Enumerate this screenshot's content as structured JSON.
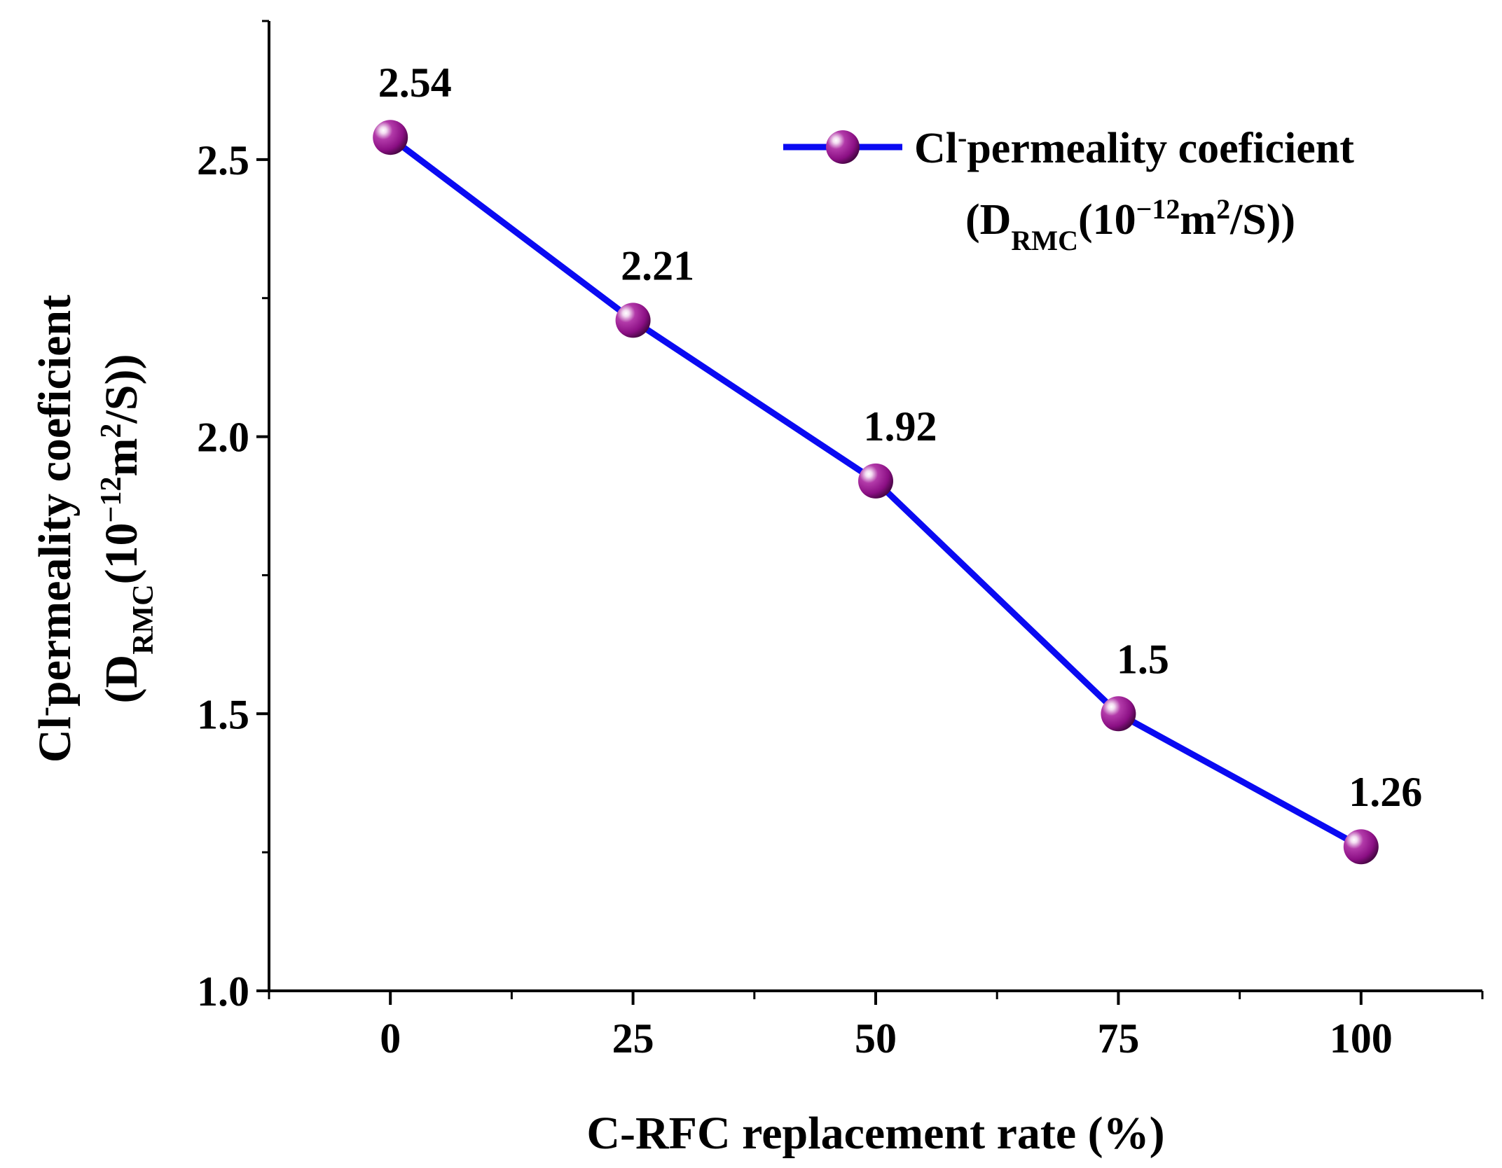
{
  "chart_data": {
    "type": "line",
    "x": [
      0,
      25,
      50,
      75,
      100
    ],
    "categories": [
      "0",
      "25",
      "50",
      "75",
      "100"
    ],
    "series": [
      {
        "name": "Cl- permeality coeficient (DRMC(10^-12 m2/S))",
        "values": [
          2.54,
          2.21,
          1.92,
          1.5,
          1.26
        ],
        "data_labels": [
          "2.54",
          "2.21",
          "1.92",
          "1.5",
          "1.26"
        ]
      }
    ],
    "xlabel": "C-RFC replacement rate (%)",
    "ylabel": {
      "line1_main": "Cl",
      "line1_sup": "-",
      "line1_rest": "permeality coeficient",
      "line2_open": "(D",
      "line2_sub": "RMC",
      "line2_paren": "(10",
      "line2_exp": "−12",
      "line2_unit": "m",
      "line2_unit_exp": "2",
      "line2_close": "/S))"
    },
    "xlim": [
      -12.5,
      112.5
    ],
    "ylim": [
      1.0,
      2.75
    ],
    "xticks": [
      0,
      25,
      50,
      75,
      100
    ],
    "xtick_labels": [
      "0",
      "25",
      "50",
      "75",
      "100"
    ],
    "x_minor_ticks": [
      -12.5,
      12.5,
      37.5,
      62.5,
      87.5,
      112.5
    ],
    "yticks": [
      1.0,
      1.5,
      2.0,
      2.5
    ],
    "ytick_labels": [
      "1.0",
      "1.5",
      "2.0",
      "2.5"
    ],
    "y_minor_ticks": [
      1.25,
      1.75,
      2.25,
      2.75
    ],
    "grid": false,
    "legend": {
      "position": "top-right",
      "line1_main": "Cl",
      "line1_sup": "-",
      "line1_rest": "permeality coeficient",
      "line2_open": "(D",
      "line2_sub": "RMC",
      "line2_paren": "(10",
      "line2_exp": "−12",
      "line2_unit": "m",
      "line2_unit_exp": "2",
      "line2_close": "/S))"
    },
    "colors": {
      "line": "#0a0af2",
      "marker": "#8b0f84",
      "marker_highlight": "#f3dcf1",
      "axis": "#000000"
    }
  }
}
